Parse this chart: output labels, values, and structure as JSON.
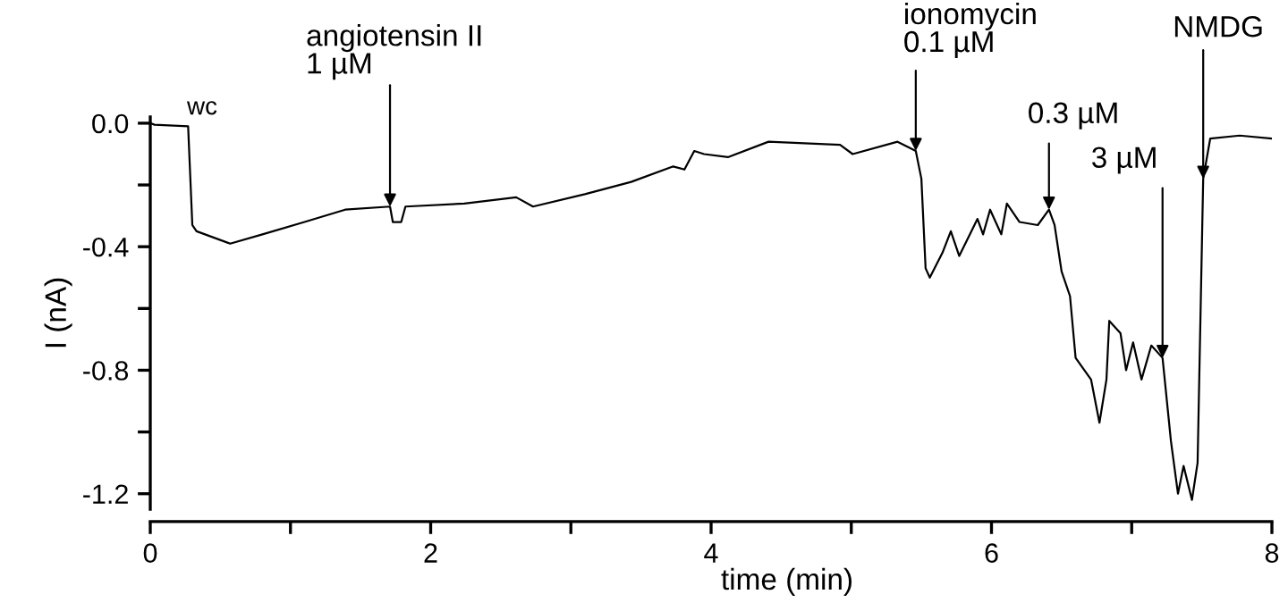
{
  "chart_data": {
    "type": "line",
    "xlabel": "time (min)",
    "ylabel": "I (nA)",
    "x": [
      0.0,
      0.03,
      0.27,
      0.3,
      0.33,
      0.57,
      0.8,
      1.1,
      1.39,
      1.71,
      1.73,
      1.79,
      1.82,
      2.24,
      2.61,
      2.73,
      3.1,
      3.43,
      3.73,
      3.81,
      3.88,
      3.95,
      4.12,
      4.41,
      4.92,
      5.01,
      5.33,
      5.46,
      5.5,
      5.53,
      5.56,
      5.65,
      5.71,
      5.77,
      5.9,
      5.94,
      5.99,
      6.07,
      6.11,
      6.2,
      6.33,
      6.41,
      6.45,
      6.5,
      6.56,
      6.6,
      6.71,
      6.77,
      6.82,
      6.84,
      6.92,
      6.96,
      7.01,
      7.07,
      7.14,
      7.22,
      7.28,
      7.33,
      7.37,
      7.43,
      7.47,
      7.51,
      7.56,
      7.77,
      8.0
    ],
    "series": [
      {
        "color": "#000000",
        "values": [
          0.0,
          -0.005,
          -0.01,
          -0.33,
          -0.35,
          -0.39,
          -0.36,
          -0.32,
          -0.28,
          -0.27,
          -0.32,
          -0.32,
          -0.27,
          -0.26,
          -0.24,
          -0.27,
          -0.23,
          -0.19,
          -0.14,
          -0.15,
          -0.09,
          -0.1,
          -0.11,
          -0.06,
          -0.07,
          -0.1,
          -0.06,
          -0.09,
          -0.18,
          -0.47,
          -0.5,
          -0.42,
          -0.35,
          -0.43,
          -0.31,
          -0.36,
          -0.28,
          -0.36,
          -0.26,
          -0.32,
          -0.33,
          -0.28,
          -0.33,
          -0.48,
          -0.56,
          -0.76,
          -0.83,
          -0.97,
          -0.83,
          -0.64,
          -0.68,
          -0.8,
          -0.71,
          -0.83,
          -0.72,
          -0.76,
          -1.03,
          -1.2,
          -1.11,
          -1.22,
          -1.1,
          -0.18,
          -0.05,
          -0.04,
          -0.05
        ]
      }
    ],
    "xlim": [
      0,
      8
    ],
    "ylim": [
      -1.25,
      0.02
    ],
    "xticks": [
      0,
      {
        "value": 1,
        "label": null
      },
      2,
      {
        "value": 3,
        "label": null
      },
      4,
      {
        "value": 5,
        "label": null
      },
      6,
      {
        "value": 7,
        "label": null
      },
      8
    ],
    "yticks": [
      {
        "value": 0,
        "label": "0.0"
      },
      {
        "value": -0.2,
        "label": null
      },
      {
        "value": -0.4,
        "label": "-0.4"
      },
      {
        "value": -0.6,
        "label": null
      },
      {
        "value": -0.8,
        "label": "-0.8"
      },
      {
        "value": -1.0,
        "label": null
      },
      {
        "value": -1.2,
        "label": "-1.2"
      }
    ],
    "annotations": [
      {
        "text": "wc",
        "x": 0.3,
        "y": 0.0
      },
      {
        "text": "angiotensin II\n1 µM",
        "x": 1.71,
        "y": -0.27
      },
      {
        "text": "ionomycin\n0.1 µM",
        "x": 5.46,
        "y": -0.09
      },
      {
        "text": "0.3 µM",
        "x": 6.41,
        "y": -0.28
      },
      {
        "text": "3 µM",
        "x": 7.22,
        "y": -0.76
      },
      {
        "text": "NMDG",
        "x": 7.51,
        "y": -0.18
      }
    ],
    "grid": false,
    "legend": false,
    "marker": "none",
    "line_style": "solid"
  }
}
